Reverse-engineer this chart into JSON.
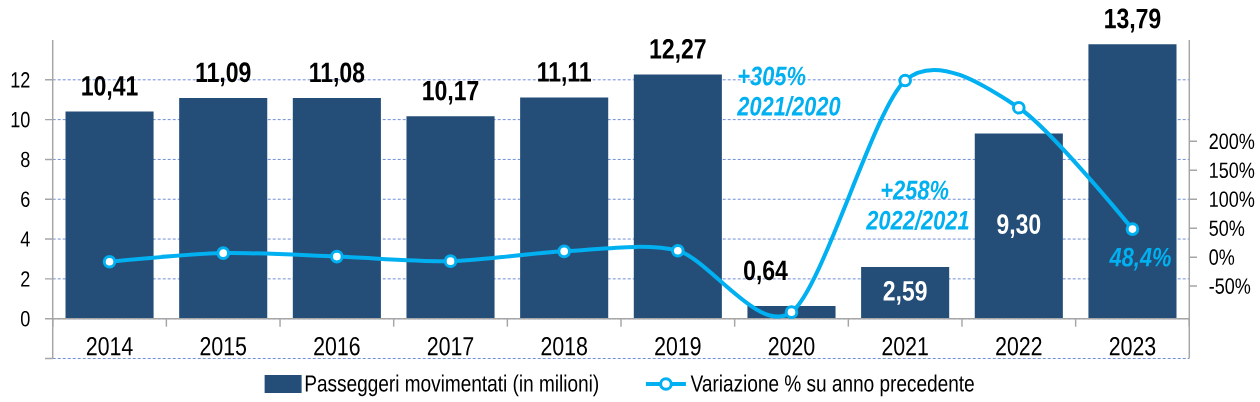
{
  "chart_data": {
    "type": "bar",
    "categories": [
      "2014",
      "2015",
      "2016",
      "2017",
      "2018",
      "2019",
      "2020",
      "2021",
      "2022",
      "2023"
    ],
    "series": [
      {
        "name": "Passeggeri movimentati (in milioni)",
        "color": "#244e78",
        "values": [
          10.41,
          11.09,
          11.08,
          10.17,
          11.11,
          12.27,
          0.64,
          2.59,
          9.3,
          13.79
        ],
        "value_labels": [
          "10,41",
          "11,09",
          "11,08",
          "10,17",
          "11,11",
          "12,27",
          "0,64",
          "2,59",
          "9,30",
          "13,79"
        ]
      },
      {
        "name": "Variazione % su anno precedente",
        "type": "line",
        "axis": "y2",
        "color": "#00b0f0",
        "marker": "circle",
        "values": [
          -8,
          7,
          1,
          -7,
          10,
          11,
          -95,
          305,
          258,
          48.4
        ],
        "value_labels": [
          null,
          null,
          null,
          null,
          null,
          null,
          null,
          null,
          null,
          "48,4%"
        ]
      }
    ],
    "ylim": [
      -2,
      14
    ],
    "yticks": [
      {
        "value": -2,
        "label": null
      },
      0,
      2,
      4,
      6,
      8,
      10,
      12
    ],
    "y2lim": [
      -175,
      375
    ],
    "y2ticks": [
      {
        "value": -50,
        "label": "-50%"
      },
      {
        "value": 0,
        "label": "0%"
      },
      {
        "value": 50,
        "label": "50%"
      },
      {
        "value": 100,
        "label": "100%"
      },
      {
        "value": 150,
        "label": "150%"
      },
      {
        "value": 200,
        "label": "200%"
      }
    ],
    "grid": "y",
    "legend": "bottom",
    "annotations": [
      "+305%",
      "2021/2020",
      "+258%",
      "2022/2021"
    ]
  }
}
